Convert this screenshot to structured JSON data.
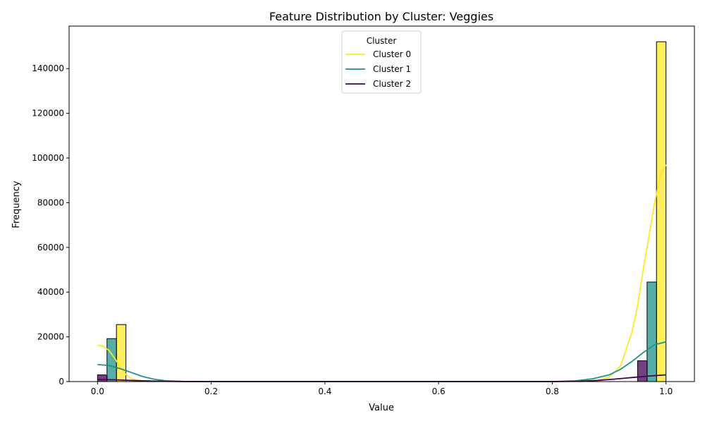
{
  "chart_data": {
    "type": "bar",
    "title": "Feature Distribution by Cluster: Veggies",
    "xlabel": "Value",
    "ylabel": "Frequency",
    "xlim": [
      -0.05,
      1.05
    ],
    "ylim": [
      0,
      159000
    ],
    "x_ticks": [
      {
        "value": 0.0,
        "label": "0.0"
      },
      {
        "value": 0.2,
        "label": "0.2"
      },
      {
        "value": 0.4,
        "label": "0.4"
      },
      {
        "value": 0.6,
        "label": "0.6"
      },
      {
        "value": 0.8,
        "label": "0.8"
      },
      {
        "value": 1.0,
        "label": "1.0"
      }
    ],
    "y_ticks": [
      {
        "value": 0,
        "label": "0"
      },
      {
        "value": 20000,
        "label": "20000"
      },
      {
        "value": 40000,
        "label": "40000"
      },
      {
        "value": 60000,
        "label": "60000"
      },
      {
        "value": 80000,
        "label": "80000"
      },
      {
        "value": 100000,
        "label": "100000"
      },
      {
        "value": 120000,
        "label": "120000"
      },
      {
        "value": 140000,
        "label": "140000"
      }
    ],
    "grid": false,
    "legend": {
      "title": "Cluster",
      "placement": "top-center"
    },
    "series": [
      {
        "name": "Cluster 0",
        "color": "#fde725",
        "bars": [
          {
            "x0": 0.0333,
            "x1": 0.05,
            "value": 25500
          },
          {
            "x0": 0.9833,
            "x1": 1.0,
            "value": 152000
          }
        ],
        "kde": [
          [
            0.0,
            16300
          ],
          [
            0.01,
            15800
          ],
          [
            0.02,
            14000
          ],
          [
            0.03,
            10500
          ],
          [
            0.04,
            6500
          ],
          [
            0.05,
            3200
          ],
          [
            0.06,
            1200
          ],
          [
            0.08,
            200
          ],
          [
            0.1,
            0
          ],
          [
            0.85,
            0
          ],
          [
            0.88,
            500
          ],
          [
            0.9,
            2000
          ],
          [
            0.92,
            7000
          ],
          [
            0.94,
            22000
          ],
          [
            0.95,
            34000
          ],
          [
            0.96,
            50000
          ],
          [
            0.97,
            65000
          ],
          [
            0.98,
            80000
          ],
          [
            0.99,
            92000
          ],
          [
            1.0,
            97000
          ]
        ]
      },
      {
        "name": "Cluster 1",
        "color": "#21918c",
        "bars": [
          {
            "x0": 0.0167,
            "x1": 0.0333,
            "value": 19200
          },
          {
            "x0": 0.9667,
            "x1": 0.9833,
            "value": 44500
          }
        ],
        "kde": [
          [
            0.0,
            7600
          ],
          [
            0.02,
            7200
          ],
          [
            0.04,
            5800
          ],
          [
            0.06,
            4000
          ],
          [
            0.08,
            2200
          ],
          [
            0.1,
            1000
          ],
          [
            0.12,
            350
          ],
          [
            0.15,
            50
          ],
          [
            0.2,
            0
          ],
          [
            0.8,
            0
          ],
          [
            0.84,
            300
          ],
          [
            0.87,
            1200
          ],
          [
            0.9,
            3000
          ],
          [
            0.92,
            5500
          ],
          [
            0.94,
            9000
          ],
          [
            0.96,
            13000
          ],
          [
            0.98,
            16500
          ],
          [
            1.0,
            17800
          ]
        ]
      },
      {
        "name": "Cluster 2",
        "color": "#440154",
        "bars": [
          {
            "x0": 0.0,
            "x1": 0.0167,
            "value": 3000
          },
          {
            "x0": 0.95,
            "x1": 0.9667,
            "value": 9300
          }
        ],
        "kde": [
          [
            0.0,
            900
          ],
          [
            0.03,
            800
          ],
          [
            0.06,
            500
          ],
          [
            0.1,
            200
          ],
          [
            0.15,
            30
          ],
          [
            0.2,
            0
          ],
          [
            0.8,
            0
          ],
          [
            0.85,
            150
          ],
          [
            0.88,
            500
          ],
          [
            0.91,
            1100
          ],
          [
            0.94,
            1800
          ],
          [
            0.97,
            2500
          ],
          [
            1.0,
            3000
          ]
        ]
      }
    ]
  }
}
